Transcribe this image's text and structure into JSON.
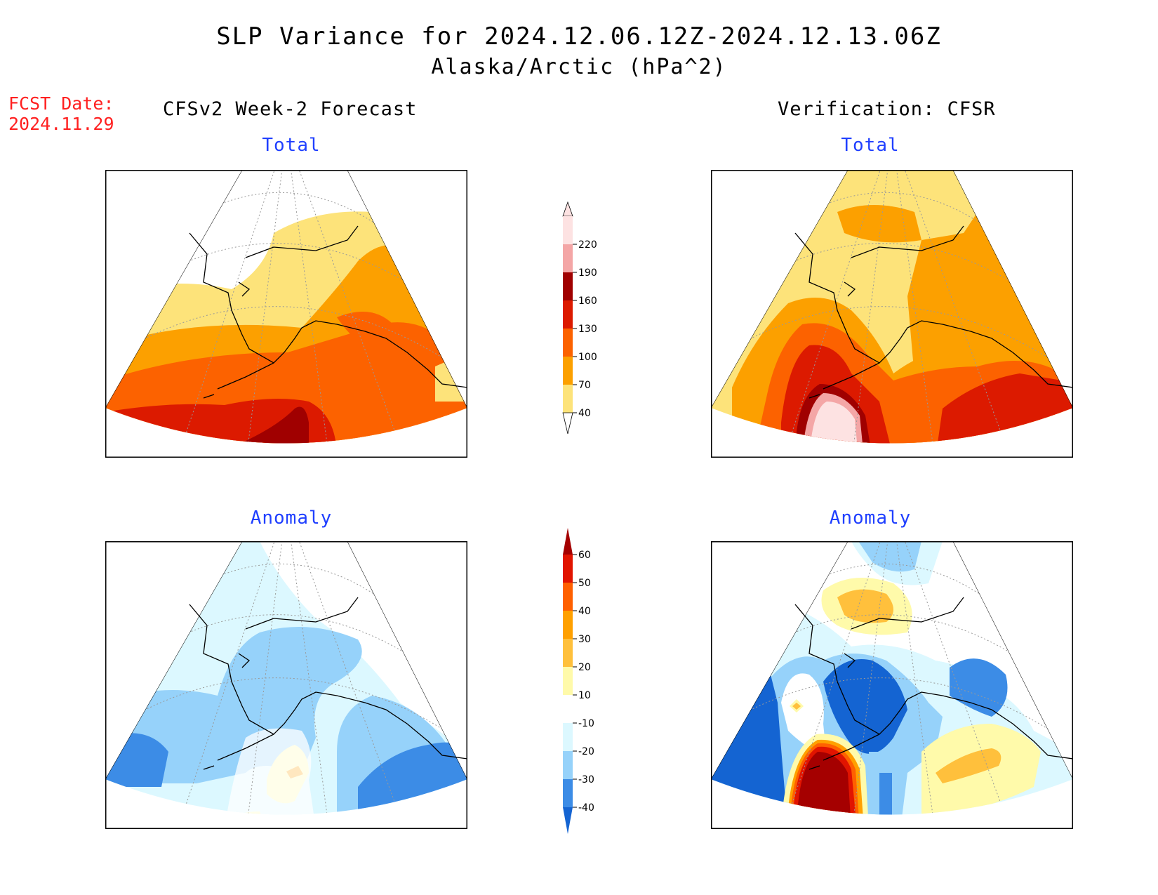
{
  "header": {
    "title_line1": "SLP Variance for 2024.12.06.12Z-2024.12.13.06Z",
    "title_line2": "Alaska/Arctic (hPa^2)"
  },
  "fcst_date": {
    "label": "FCST Date:",
    "value": "2024.11.29"
  },
  "columns": {
    "left": "CFSv2 Week-2 Forecast",
    "right": "Verification: CFSR"
  },
  "panels": {
    "forecast_total": {
      "title": "Total"
    },
    "verification_total": {
      "title": "Total"
    },
    "forecast_anomaly": {
      "title": "Anomaly"
    },
    "verification_anomaly": {
      "title": "Anomaly"
    }
  },
  "colors": {
    "total": [
      "#ffffff",
      "#fde37a",
      "#fca000",
      "#fc6200",
      "#dc1a00",
      "#a00000",
      "#f4a6a6",
      "#fde2e2"
    ],
    "anomaly": [
      "#1464d2",
      "#3c8ce6",
      "#96d2fa",
      "#dcf8ff",
      "#ffffff",
      "#fffaaa",
      "#ffc03c",
      "#ffa000",
      "#ff6000",
      "#e11400",
      "#a50000"
    ]
  },
  "chart_data": [
    {
      "type": "colorbar",
      "name": "total",
      "levels": [
        40,
        70,
        100,
        130,
        160,
        190,
        220
      ],
      "labels": [
        "220",
        "190",
        "160",
        "130",
        "100",
        "70",
        "40"
      ]
    },
    {
      "type": "colorbar",
      "name": "anomaly",
      "levels": [
        -40,
        -30,
        -20,
        -10,
        10,
        20,
        30,
        40,
        50,
        60
      ],
      "labels": [
        "60",
        "50",
        "40",
        "30",
        "20",
        "10",
        "-10",
        "-20",
        "-30",
        "-40"
      ]
    }
  ]
}
